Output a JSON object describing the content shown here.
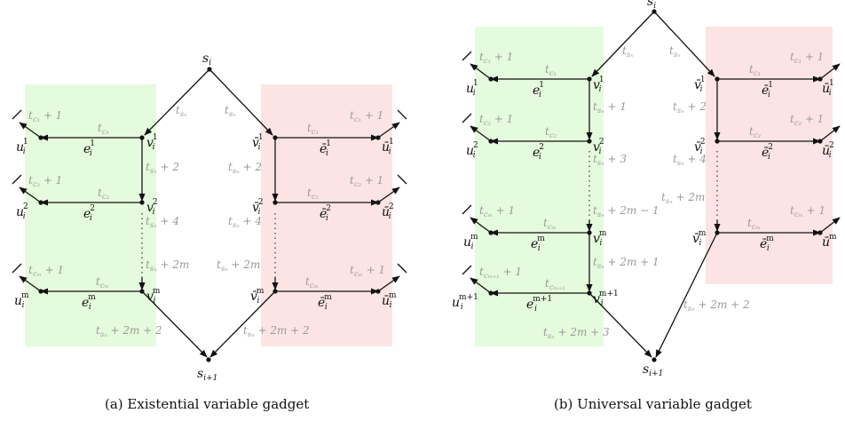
{
  "captions": {
    "a": "(a) Existential variable gadget",
    "b": "(b) Universal variable gadget"
  },
  "colors": {
    "green_region": "#e5fbdd",
    "red_region": "#fde4e4",
    "edge": "#111111",
    "time_label": "#9a9a9a"
  },
  "nodes": {
    "s": "s",
    "s_sub_i": "i",
    "s_sub_ip1": "i+1",
    "v": "v",
    "vbar": "v̄",
    "u": "u",
    "ubar": "ū",
    "e": "e",
    "ebar": "ē",
    "sub_i": "i",
    "sup_1": "1",
    "sup_2": "2",
    "sup_m": "m",
    "sup_mp1": "m+1"
  },
  "times": {
    "t": "t",
    "c1": "c₁",
    "c2": "c₂",
    "cm": "cₘ",
    "cm1": "cₘ₊₁",
    "sn": "sₙ",
    "plus1": " + 1",
    "plus2": " + 2",
    "plus3": " + 3",
    "plus4": " + 4",
    "plus2m": " + 2m",
    "plus2m_m1": " + 2m − 1",
    "plus2m_p1": " + 2m + 1",
    "plus2m_p2": " + 2m + 2",
    "plus2m_p3": " + 2m + 3"
  }
}
